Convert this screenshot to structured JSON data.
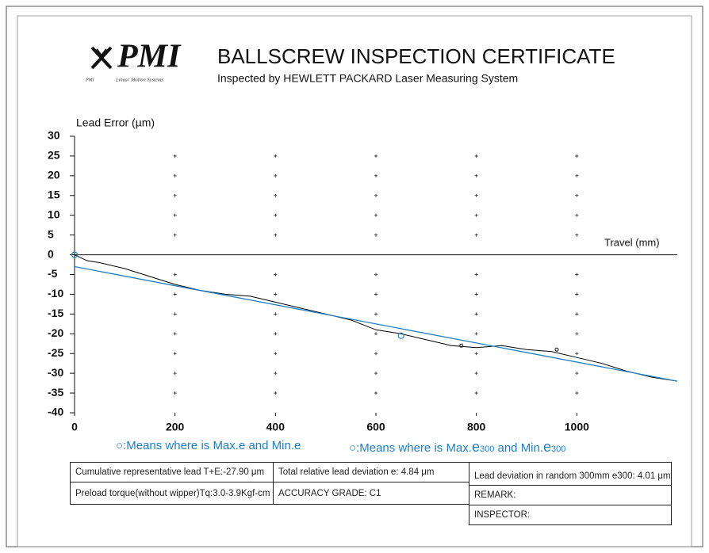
{
  "header": {
    "logo": "PMI",
    "logo_small": "PMI",
    "tagline": "Linear Motion Systems",
    "title": "BALLSCREW INSPECTION CERTIFICATE",
    "subtitle": "Inspected by HEWLETT PACKARD Laser Measuring System"
  },
  "chart_data": {
    "type": "line",
    "y_label": "Lead Error (µm)",
    "x_label": "Travel (mm)",
    "x": [
      0,
      25,
      50,
      100,
      150,
      200,
      250,
      300,
      350,
      400,
      450,
      500,
      550,
      600,
      650,
      700,
      750,
      800,
      850,
      900,
      950,
      1000,
      1050,
      1100,
      1150,
      1200
    ],
    "series": [
      {
        "color": "#000000",
        "values": [
          0,
          -1.5,
          -2,
          -3.5,
          -5.5,
          -7.5,
          -9,
          -10,
          -10.5,
          -12,
          -13.5,
          -15,
          -16.5,
          -19,
          -20,
          -21.5,
          -23,
          -23.5,
          -23,
          -24,
          -24.5,
          -26,
          -27.5,
          -29.5,
          -31,
          -32
        ]
      },
      {
        "color": "#1f7fc4",
        "x": [
          0,
          1200
        ],
        "values": [
          -3,
          -32
        ]
      }
    ],
    "markers_e": {
      "color": "#1f7fc4",
      "x": [
        0,
        650
      ],
      "values": [
        0,
        -20.5
      ]
    },
    "markers_e300": {
      "color": "#333333",
      "x": [
        770,
        960
      ],
      "values": [
        -23,
        -24
      ]
    },
    "xlim": [
      0,
      1200
    ],
    "xticks": [
      0,
      200,
      400,
      600,
      800,
      1000
    ],
    "ylim": [
      -40,
      30
    ],
    "yticks": [
      30,
      25,
      20,
      15,
      10,
      5,
      0,
      -5,
      -10,
      -15,
      -20,
      -25,
      -30,
      -35,
      -40
    ],
    "grid": "plus"
  },
  "legend": {
    "first": "○:Means where is Max.e and Min.e",
    "second": [
      "○:Means where is Max.",
      "e",
      "300",
      " and Min.",
      "e",
      "300"
    ]
  },
  "table": {
    "rows": [
      [
        "Cumulative representative lead  T+E:-27.90 μm",
        "Total relative lead deviation e: 4.84 μm",
        "Lead deviation in random 300mm e300: 4.01 μm"
      ],
      [
        "Preload torque(without wipper)Tq:3.0-3.9Kgf-cm",
        "ACCURACY GRADE:  C1",
        "REMARK:"
      ],
      [
        "INSPECTOR:"
      ]
    ]
  }
}
